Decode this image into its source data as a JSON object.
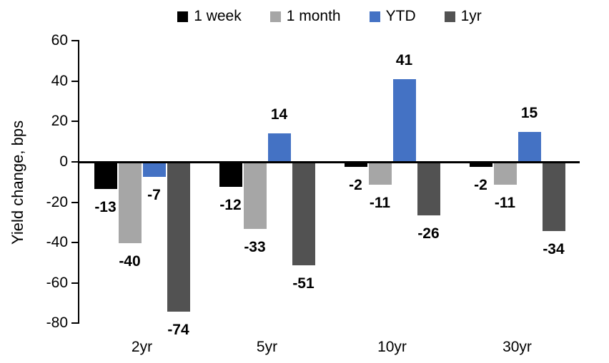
{
  "chart_data": {
    "type": "bar",
    "title": "",
    "ylabel": "Yield change, bps",
    "xlabel": "",
    "categories": [
      "2yr",
      "5yr",
      "10yr",
      "30yr"
    ],
    "series": [
      {
        "name": "1 week",
        "color": "#000000",
        "values": [
          -13,
          -12,
          -2,
          -2
        ]
      },
      {
        "name": "1 month",
        "color": "#A6A6A6",
        "values": [
          -40,
          -33,
          -11,
          -11
        ]
      },
      {
        "name": "YTD",
        "color": "#4472C4",
        "values": [
          -7,
          14,
          41,
          15
        ]
      },
      {
        "name": "1yr",
        "color": "#525252",
        "values": [
          -74,
          -51,
          -26,
          -34
        ]
      }
    ],
    "y_ticks": [
      60,
      40,
      20,
      0,
      -20,
      -40,
      -60,
      -80
    ],
    "ylim": [
      -80,
      60
    ],
    "grid": false,
    "legend_position": "top",
    "data_labels": true,
    "axis_color": "#000000",
    "label_color": "#000000"
  }
}
